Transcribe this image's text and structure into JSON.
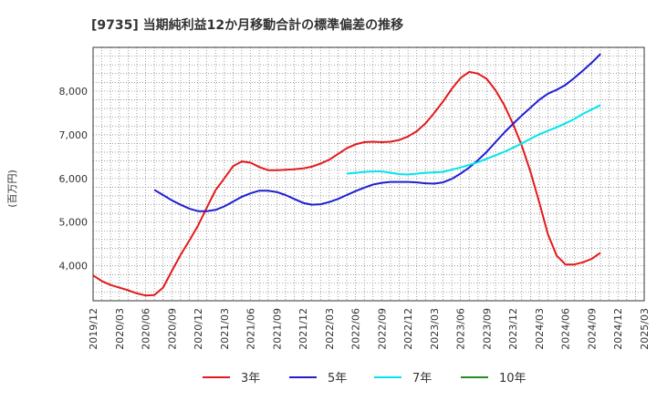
{
  "chart_data": {
    "type": "line",
    "title": "[9735]  当期純利益12か月移動合計の標準偏差の推移",
    "ylabel": "(百万円)",
    "xlabel": "",
    "ylim": [
      3200,
      9000
    ],
    "yticks": [
      4000,
      5000,
      6000,
      7000,
      8000
    ],
    "ytick_labels": [
      "4,000",
      "5,000",
      "6,000",
      "7,000",
      "8,000"
    ],
    "xticks": [
      "2019/12",
      "2020/03",
      "2020/06",
      "2020/09",
      "2020/12",
      "2021/03",
      "2021/06",
      "2021/09",
      "2021/12",
      "2022/03",
      "2022/06",
      "2022/09",
      "2022/12",
      "2023/03",
      "2023/06",
      "2023/09",
      "2023/12",
      "2024/03",
      "2024/06",
      "2024/09",
      "2024/12",
      "2025/03"
    ],
    "grid": true,
    "legend_position": "bottom",
    "series": [
      {
        "name": "3年",
        "color": "#e31a1c",
        "values": [
          3780,
          3650,
          3560,
          3500,
          3440,
          3370,
          3320,
          3330,
          3500,
          3880,
          4250,
          4580,
          4920,
          5330,
          5730,
          6000,
          6280,
          6390,
          6360,
          6260,
          6190,
          6190,
          6200,
          6210,
          6230,
          6270,
          6340,
          6430,
          6560,
          6690,
          6780,
          6830,
          6840,
          6830,
          6840,
          6880,
          6960,
          7080,
          7260,
          7500,
          7760,
          8050,
          8300,
          8440,
          8400,
          8280,
          8020,
          7680,
          7250,
          6750,
          6150,
          5450,
          4720,
          4230,
          4030,
          4030,
          4080,
          4160,
          4300
        ]
      },
      {
        "name": "5年",
        "color": "#1f1fd0",
        "values": [
          null,
          null,
          null,
          null,
          null,
          null,
          null,
          5740,
          5620,
          5500,
          5400,
          5310,
          5250,
          5250,
          5280,
          5360,
          5470,
          5580,
          5660,
          5720,
          5720,
          5690,
          5620,
          5530,
          5440,
          5400,
          5410,
          5460,
          5530,
          5620,
          5710,
          5790,
          5860,
          5900,
          5920,
          5920,
          5920,
          5910,
          5890,
          5880,
          5910,
          5990,
          6110,
          6250,
          6420,
          6610,
          6830,
          7050,
          7250,
          7440,
          7620,
          7800,
          7940,
          8030,
          8140,
          8300,
          8470,
          8650,
          8850
        ]
      },
      {
        "name": "7年",
        "color": "#00e5ee",
        "values": [
          null,
          null,
          null,
          null,
          null,
          null,
          null,
          null,
          null,
          null,
          null,
          null,
          null,
          null,
          null,
          null,
          null,
          null,
          null,
          null,
          null,
          null,
          null,
          null,
          null,
          null,
          null,
          null,
          null,
          6110,
          6130,
          6150,
          6160,
          6160,
          6130,
          6100,
          6090,
          6110,
          6130,
          6140,
          6150,
          6200,
          6250,
          6310,
          6370,
          6450,
          6530,
          6610,
          6700,
          6800,
          6910,
          7010,
          7090,
          7170,
          7260,
          7360,
          7480,
          7580,
          7680
        ]
      },
      {
        "name": "10年",
        "color": "#228b22",
        "values": []
      }
    ]
  }
}
